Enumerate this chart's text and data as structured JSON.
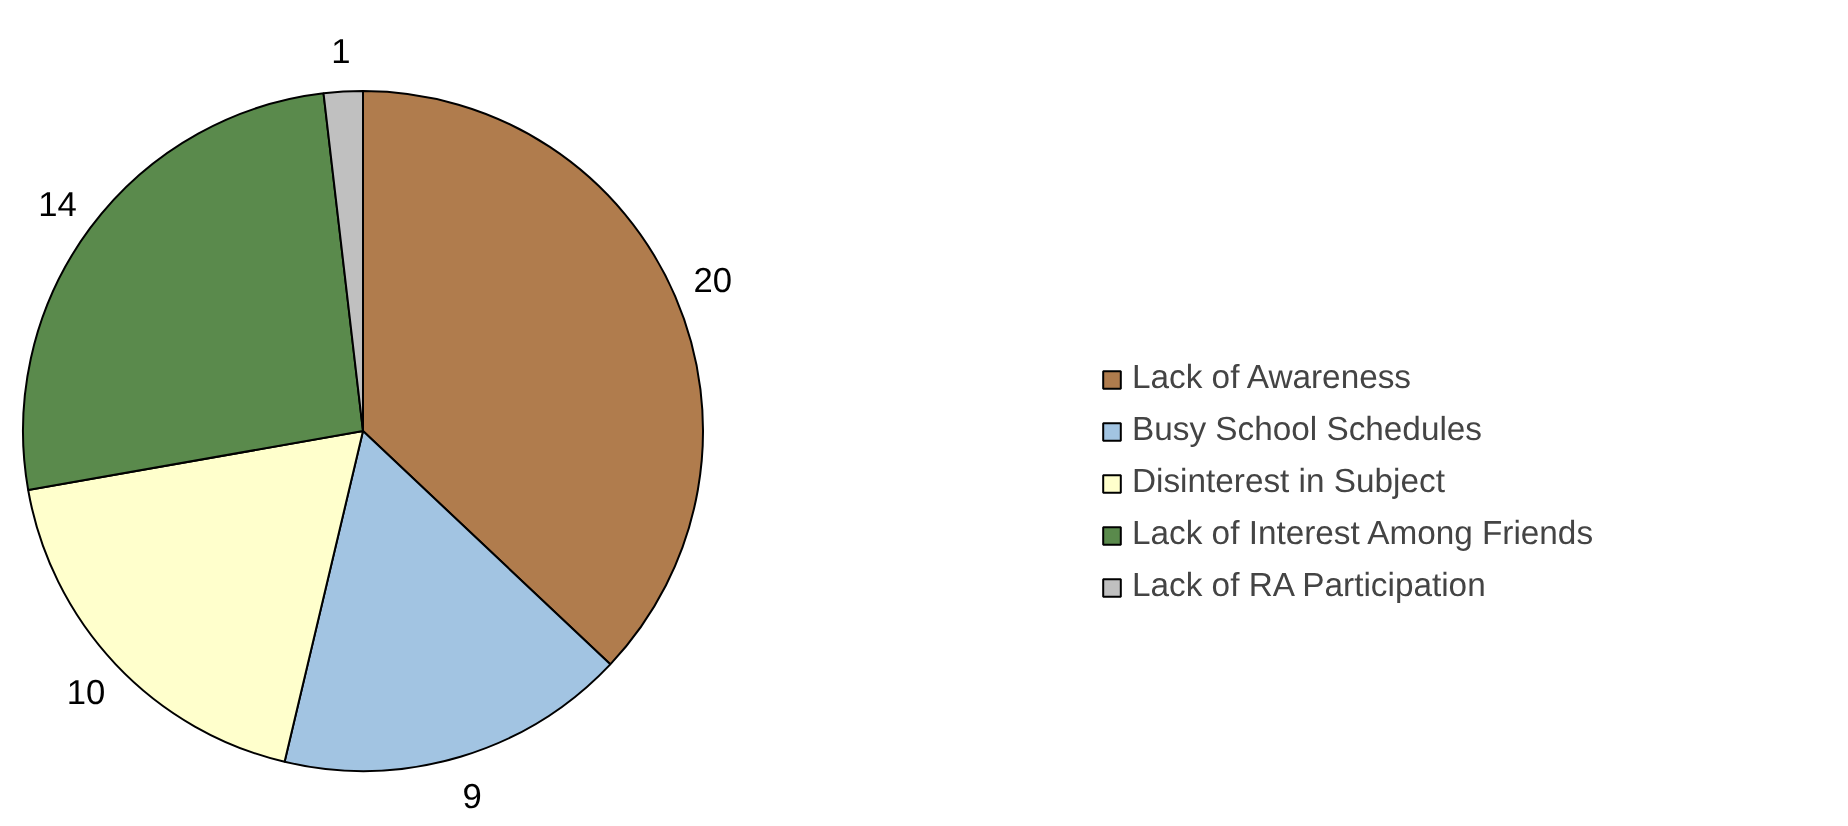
{
  "chart_data": {
    "type": "pie",
    "categories": [
      "Lack of Awareness",
      "Busy School Schedules",
      "Disinterest in Subject",
      "Lack of Interest Among Friends",
      "Lack of RA Participation"
    ],
    "values": [
      20,
      9,
      10,
      14,
      1
    ],
    "colors": [
      "#b07c4d",
      "#a2c4e2",
      "#ffffcc",
      "#5a8a4c",
      "#c0c0c0"
    ],
    "data_labels": true,
    "legend": "right"
  }
}
